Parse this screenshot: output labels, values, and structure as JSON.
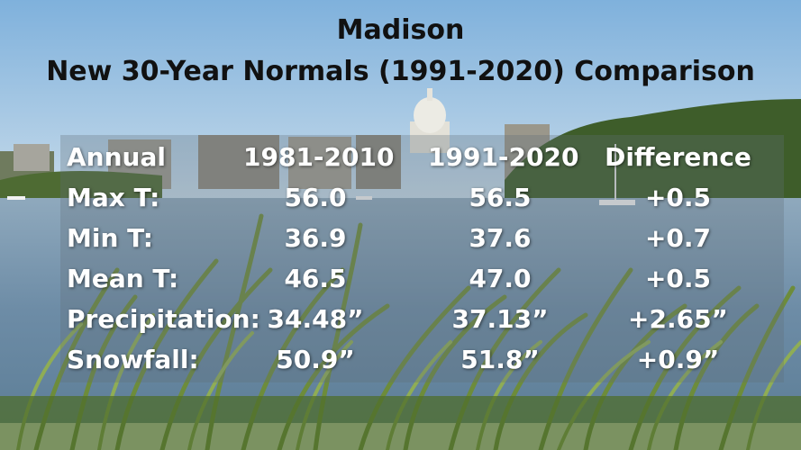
{
  "title_line1": "Madison",
  "title_line2": "New 30-Year Normals (1991-2020) Comparison",
  "table": {
    "headers": [
      "Annual",
      "1981-2010",
      "1991-2020",
      "Difference"
    ],
    "rows": [
      [
        "Max T:",
        "56.0",
        "56.5",
        "+0.5"
      ],
      [
        "Min T:",
        "36.9",
        "37.6",
        "+0.7"
      ],
      [
        "Mean T:",
        "46.5",
        "47.0",
        "+0.5"
      ],
      [
        "Precipitation:",
        "34.48”",
        "37.13”",
        "+2.65”"
      ],
      [
        "Snowfall:",
        "50.9”",
        "51.8”",
        "+0.9”"
      ]
    ]
  },
  "colors": {
    "sky_top": "#87b6de",
    "sky_bottom": "#c9dcea",
    "water": "#6f8fa9",
    "reeds": "#6f8f3f",
    "title_text": "#111111",
    "table_text": "#ffffff"
  }
}
